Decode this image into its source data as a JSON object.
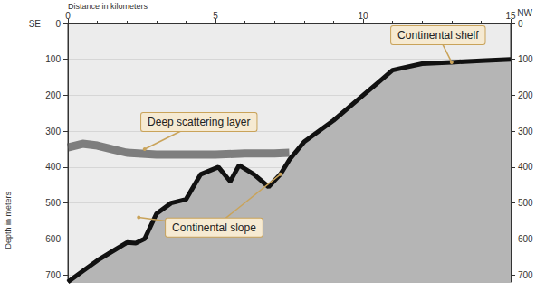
{
  "chart_data": {
    "type": "line",
    "x_label": "Distance in kilometers",
    "y_label": "Depth in meters",
    "end_labels": {
      "left": "SE",
      "right": "NW"
    },
    "xlim": [
      0,
      15
    ],
    "xticks": [
      0,
      5,
      10,
      15
    ],
    "ylim": [
      0,
      720
    ],
    "yticks": [
      0,
      100,
      200,
      300,
      400,
      500,
      600,
      700
    ],
    "grid": true,
    "series": [
      {
        "color": "#111111",
        "x": [
          0,
          0.5,
          1,
          1.6,
          2,
          2.3,
          2.6,
          3,
          3.5,
          4,
          4.5,
          5.1,
          5.5,
          5.8,
          6.3,
          6.8,
          7.2,
          7.5,
          8,
          9,
          10,
          10.5,
          11,
          12,
          13,
          14,
          15
        ],
        "values": [
          720,
          690,
          660,
          630,
          610,
          612,
          600,
          530,
          500,
          490,
          420,
          400,
          440,
          395,
          420,
          455,
          420,
          380,
          330,
          270,
          200,
          165,
          130,
          112,
          108,
          104,
          100
        ]
      },
      {
        "color": "#5a5a5a",
        "x": [
          0,
          0.5,
          1,
          1.5,
          2,
          3,
          4,
          5,
          6,
          7,
          7.5
        ],
        "values": [
          345,
          335,
          340,
          350,
          360,
          365,
          365,
          365,
          362,
          362,
          360
        ]
      }
    ],
    "annotations": [
      {
        "text": "Continental shelf",
        "points": [
          [
            13,
            108
          ]
        ]
      },
      {
        "text": "Deep scattering layer",
        "points": [
          [
            2.6,
            350
          ]
        ]
      },
      {
        "text": "Continental slope",
        "points": [
          [
            2.4,
            540
          ],
          [
            7.2,
            420
          ]
        ]
      }
    ]
  }
}
